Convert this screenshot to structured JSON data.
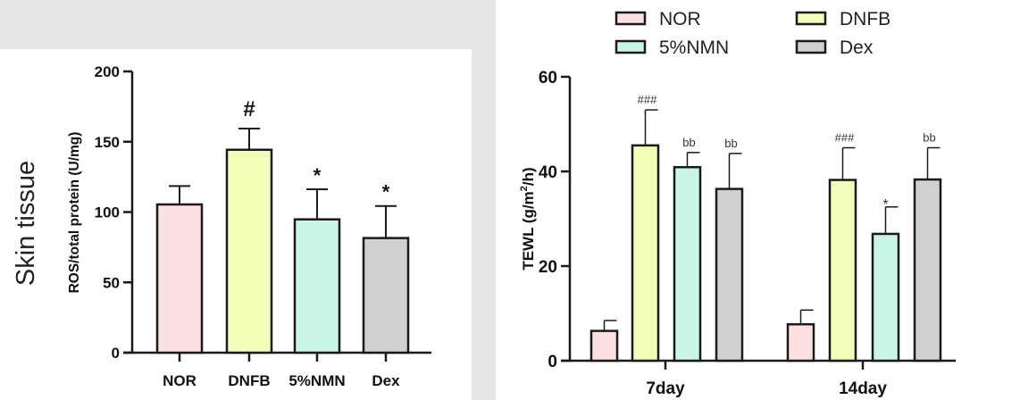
{
  "colors": {
    "NOR": "#fde0e0",
    "DNFB": "#f3fdb8",
    "5%NMN": "#c9f6e6",
    "Dex": "#d0d0d0",
    "axis": "#1a1a1a",
    "background": "#e6e6e6",
    "panel": "#ffffff"
  },
  "side_label": "Skin tissue",
  "chart_data": [
    {
      "type": "bar",
      "title": "",
      "xlabel": "",
      "ylabel": "ROS/total protein (U/mg)",
      "ylim": [
        0,
        200
      ],
      "yticks": [
        0,
        50,
        100,
        150,
        200
      ],
      "ytick_labels": [
        "0",
        "50",
        "100",
        "150",
        "200"
      ],
      "categories": [
        "NOR",
        "DNFB",
        "5%NMN",
        "Dex"
      ],
      "values": [
        105.4,
        144.3,
        94.8,
        81.5
      ],
      "error_upper": [
        118.5,
        159.4,
        116.2,
        104.3
      ],
      "annotations": [
        "",
        "#",
        "*",
        "*"
      ],
      "grid": false
    },
    {
      "type": "bar",
      "title": "",
      "xlabel": "",
      "ylabel_main": "TEWL (g/m",
      "ylabel_sup": "2",
      "ylabel_tail": "/h)",
      "ylim": [
        0,
        60
      ],
      "yticks": [
        0,
        20,
        40,
        60
      ],
      "ytick_labels": [
        "0",
        "20",
        "40",
        "60"
      ],
      "categories": [
        "7day",
        "14day"
      ],
      "legend": {
        "position": "top",
        "entries": [
          "NOR",
          "DNFB",
          "5%NMN",
          "Dex"
        ]
      },
      "series": [
        {
          "name": "NOR",
          "values": [
            6.3,
            7.7
          ],
          "error_upper": [
            8.5,
            10.7
          ],
          "annotations": [
            "",
            ""
          ]
        },
        {
          "name": "DNFB",
          "values": [
            45.5,
            38.2
          ],
          "error_upper": [
            53.0,
            45.0
          ],
          "annotations": [
            "###",
            "###"
          ]
        },
        {
          "name": "5%NMN",
          "values": [
            40.9,
            26.8
          ],
          "error_upper": [
            44.0,
            32.5
          ],
          "annotations": [
            "bb",
            "*"
          ]
        },
        {
          "name": "Dex",
          "values": [
            36.3,
            38.3
          ],
          "error_upper": [
            43.8,
            45.0
          ],
          "annotations": [
            "bb",
            "bb"
          ]
        }
      ],
      "grid": false
    }
  ]
}
